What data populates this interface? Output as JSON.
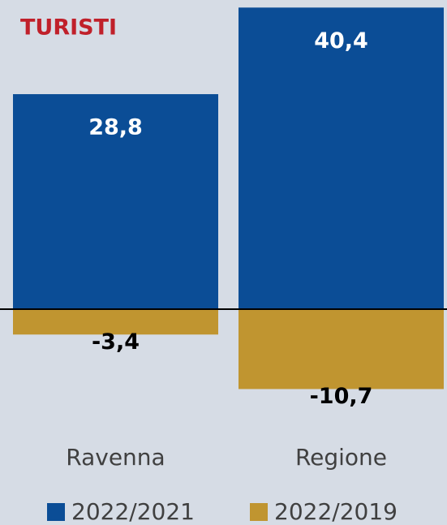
{
  "chart_data": {
    "type": "bar",
    "title": "TURISTI",
    "categories": [
      "Ravenna",
      "Regione"
    ],
    "series": [
      {
        "name": "2022/2021",
        "color": "#0b4d96",
        "values": [
          28.8,
          40.4
        ],
        "value_labels": [
          "28,8",
          "40,4"
        ]
      },
      {
        "name": "2022/2019",
        "color": "#c09530",
        "values": [
          -3.4,
          -10.7
        ],
        "value_labels": [
          "-3,4",
          "-10,7"
        ]
      }
    ]
  }
}
